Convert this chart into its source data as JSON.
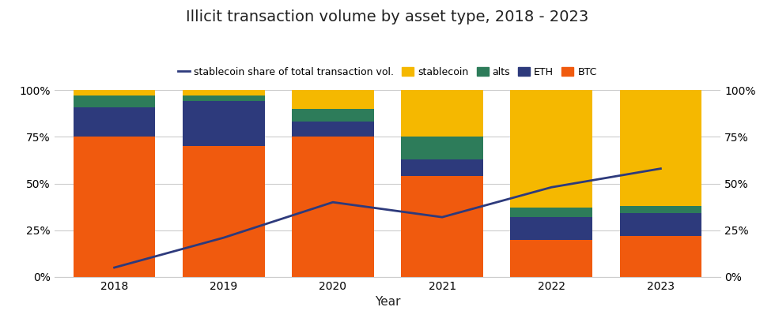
{
  "years": [
    2018,
    2019,
    2020,
    2021,
    2022,
    2023
  ],
  "btc": [
    0.75,
    0.7,
    0.75,
    0.54,
    0.2,
    0.22
  ],
  "eth": [
    0.16,
    0.24,
    0.08,
    0.09,
    0.12,
    0.12
  ],
  "alts": [
    0.06,
    0.03,
    0.07,
    0.12,
    0.05,
    0.04
  ],
  "stablecoin": [
    0.03,
    0.03,
    0.1,
    0.25,
    0.63,
    0.62
  ],
  "line_values": [
    0.05,
    0.21,
    0.4,
    0.32,
    0.48,
    0.58
  ],
  "colors": {
    "btc": "#f05a0e",
    "eth": "#2d3a7c",
    "alts": "#2d7c5a",
    "stablecoin": "#f5b800"
  },
  "line_color": "#2d3a7c",
  "title": "Illicit transaction volume by asset type, 2018 - 2023",
  "xlabel": "Year",
  "bar_width": 0.75,
  "background_color": "#ffffff",
  "legend_labels": {
    "line": "stablecoin share of total transaction vol.",
    "stablecoin": "stablecoin",
    "alts": "alts",
    "eth": "ETH",
    "btc": "BTC"
  },
  "grid_color": "#cccccc",
  "tick_fontsize": 10,
  "title_fontsize": 14,
  "xlabel_fontsize": 11
}
